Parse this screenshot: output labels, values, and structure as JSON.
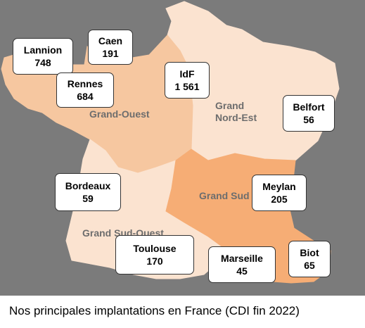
{
  "caption": "Nos principales implantations en France (CDI fin 2022)",
  "colors": {
    "background": "#7b7b7b",
    "grand_ouest": "#f6c7a0",
    "grand_nord_est": "#fbe3d0",
    "grand_sud": "#f6ad75",
    "grand_sud_ouest": "#fbe3d0",
    "card_border": "#333333",
    "region_label": "#6d6d6d"
  },
  "regions": {
    "grand_ouest": {
      "name": "Grand-Ouest"
    },
    "grand_nord_est": {
      "name_line1": "Grand",
      "name_line2": "Nord-Est"
    },
    "grand_sud": {
      "name": "Grand Sud"
    },
    "grand_sud_ouest": {
      "name": "Grand Sud-Ouest"
    }
  },
  "sites": [
    {
      "name": "Lannion",
      "count": "748"
    },
    {
      "name": "Caen",
      "count": "191"
    },
    {
      "name": "Rennes",
      "count": "684"
    },
    {
      "name": "IdF",
      "count": "1 561"
    },
    {
      "name": "Belfort",
      "count": "56"
    },
    {
      "name": "Bordeaux",
      "count": "59"
    },
    {
      "name": "Meylan",
      "count": "205"
    },
    {
      "name": "Toulouse",
      "count": "170"
    },
    {
      "name": "Marseille",
      "count": "45"
    },
    {
      "name": "Biot",
      "count": "65"
    }
  ]
}
